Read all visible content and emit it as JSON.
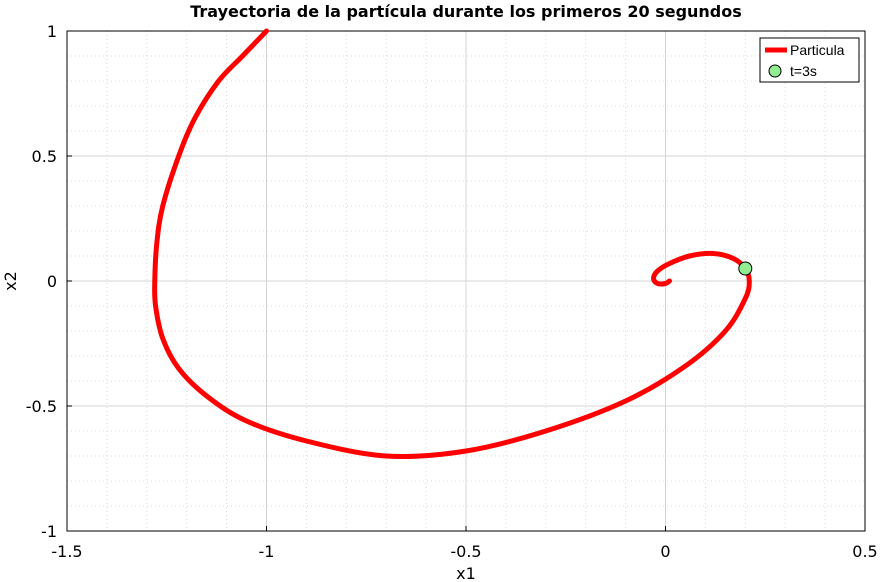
{
  "chart_data": {
    "type": "line",
    "title": "Trayectoria de la partícula durante los primeros 20 segundos",
    "xlabel": "x1",
    "ylabel": "x2",
    "xlim": [
      -1.5,
      0.5
    ],
    "ylim": [
      -1,
      1
    ],
    "xticks": [
      -1.5,
      -1,
      -0.5,
      0,
      0.5
    ],
    "yticks": [
      -1,
      -0.5,
      0,
      0.5,
      1
    ],
    "xtick_labels": [
      "-1.5",
      "-1",
      "-0.5",
      "0",
      "0.5"
    ],
    "ytick_labels": [
      "-1",
      "-0.5",
      "0",
      "0.5",
      "1"
    ],
    "grid": true,
    "minor_grid": true,
    "legend_position": "top-right",
    "series": [
      {
        "name": "Particula",
        "color": "#ff0000",
        "marker": "star",
        "x": [
          -1.0,
          -1.06,
          -1.12,
          -1.18,
          -1.22,
          -1.26,
          -1.275,
          -1.28,
          -1.278,
          -1.26,
          -1.22,
          -1.15,
          -1.05,
          -0.9,
          -0.7,
          -0.5,
          -0.3,
          -0.1,
          0.05,
          0.15,
          0.2,
          0.21,
          0.2,
          0.17,
          0.12,
          0.06,
          0.01,
          -0.02,
          -0.03,
          -0.02,
          0.0,
          0.01
        ],
        "y": [
          1.0,
          0.9,
          0.8,
          0.65,
          0.5,
          0.3,
          0.15,
          0.0,
          -0.1,
          -0.23,
          -0.35,
          -0.46,
          -0.56,
          -0.64,
          -0.7,
          -0.68,
          -0.6,
          -0.48,
          -0.34,
          -0.2,
          -0.07,
          0.0,
          0.05,
          0.09,
          0.11,
          0.1,
          0.07,
          0.04,
          0.01,
          -0.01,
          -0.01,
          0.0
        ]
      },
      {
        "name": "t=3s",
        "color": "#90ee90",
        "marker": "circle",
        "x": [
          0.2
        ],
        "y": [
          0.05
        ]
      }
    ]
  }
}
